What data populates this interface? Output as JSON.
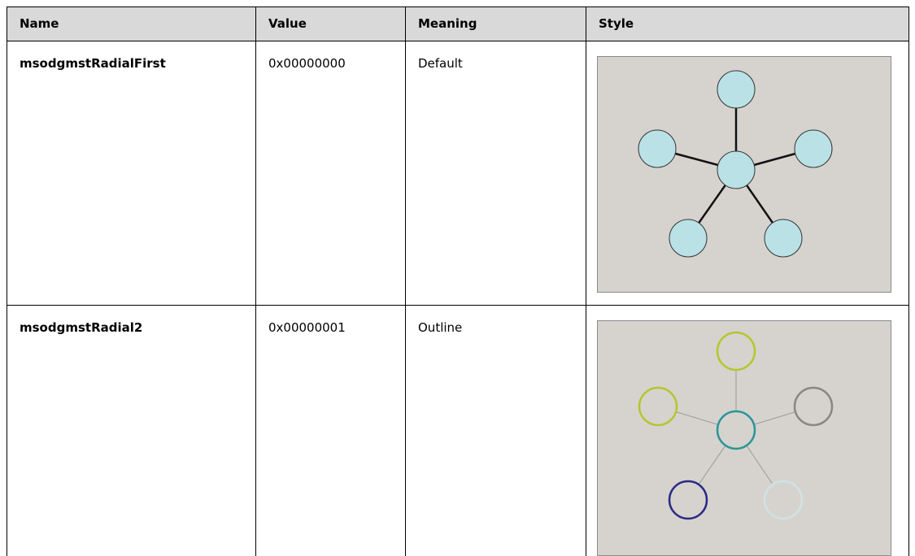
{
  "table": {
    "header": [
      "Name",
      "Value",
      "Meaning",
      "Style"
    ],
    "rows": [
      [
        "msodgmstRadialFirst",
        "0x00000000",
        "Default"
      ],
      [
        "msodgmstRadial2",
        "0x00000001",
        "Outline"
      ]
    ]
  }
}
